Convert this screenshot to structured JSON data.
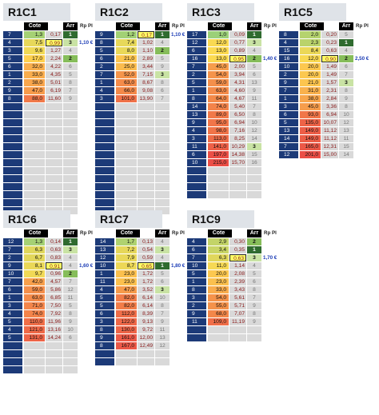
{
  "headers": {
    "cote": "Cote",
    "arr": "Arr",
    "rp": "Rp Pl"
  },
  "colors": {
    "number_cell": "#1c3a78",
    "rank1": "#2f6b2f",
    "rank2": "#86bd5a",
    "rank3": "#c9e3a4",
    "highlight": "#ffff66",
    "rp_text": "#1a3bb5"
  },
  "races": [
    {
      "title": "R1C1",
      "rp": "1,10 €",
      "rp_row": 1,
      "hl_row": 1,
      "rows": [
        [
          "7",
          "1,3",
          "0,17",
          "1"
        ],
        [
          "4",
          "7,5",
          "0,99",
          "3"
        ],
        [
          "3",
          "9,6",
          "1,27",
          "4"
        ],
        [
          "5",
          "17,0",
          "2,24",
          "2"
        ],
        [
          "6",
          "32,0",
          "4,22",
          "6"
        ],
        [
          "1",
          "33,0",
          "4,35",
          "5"
        ],
        [
          "2",
          "38,0",
          "5,01",
          "8"
        ],
        [
          "9",
          "47,0",
          "6,19",
          "7"
        ],
        [
          "8",
          "88,0",
          "11,60",
          "9"
        ]
      ],
      "blank": 14
    },
    {
      "title": "R1C2",
      "rp": "1,10 €",
      "rp_row": 0,
      "hl_row": 0,
      "rows": [
        [
          "9",
          "1,2",
          "0,17",
          "1"
        ],
        [
          "8",
          "7,4",
          "1,02",
          "4"
        ],
        [
          "5",
          "8,0",
          "1,10",
          "2"
        ],
        [
          "6",
          "21,0",
          "2,89",
          "5"
        ],
        [
          "2",
          "25,0",
          "3,44",
          "9"
        ],
        [
          "7",
          "52,0",
          "7,15",
          "3"
        ],
        [
          "1",
          "63,0",
          "8,67",
          "8"
        ],
        [
          "4",
          "66,0",
          "9,08",
          "6"
        ],
        [
          "3",
          "101,0",
          "13,90",
          "7"
        ]
      ],
      "blank": 14
    },
    {
      "title": "R1C3",
      "rp": "1,40 €",
      "rp_row": 3,
      "hl_row": 3,
      "rows": [
        [
          "17",
          "1,0",
          "0,09",
          "1"
        ],
        [
          "12",
          "12,0",
          "0,77",
          "3"
        ],
        [
          "6",
          "13,0",
          "0,89",
          "4"
        ],
        [
          "16",
          "13,0",
          "0,95",
          "2"
        ],
        [
          "7",
          "45,0",
          "2,00",
          "5"
        ],
        [
          "2",
          "54,0",
          "3,94",
          "6"
        ],
        [
          "5",
          "59,0",
          "4,31",
          "13"
        ],
        [
          "1",
          "63,0",
          "4,60",
          "9"
        ],
        [
          "8",
          "64,0",
          "4,67",
          "11"
        ],
        [
          "14",
          "74,0",
          "5,40",
          "7"
        ],
        [
          "13",
          "89,0",
          "6,50",
          "8"
        ],
        [
          "9",
          "95,0",
          "6,94",
          "10"
        ],
        [
          "4",
          "98,0",
          "7,16",
          "12"
        ],
        [
          "3",
          "113,0",
          "8,25",
          "14"
        ],
        [
          "11",
          "141,0",
          "10,29",
          "3"
        ],
        [
          "6",
          "197,0",
          "14,38",
          "15"
        ],
        [
          "10",
          "215,0",
          "15,70",
          "16"
        ]
      ],
      "blank": 4
    },
    {
      "title": "R1C5",
      "rp": "2,50 €",
      "rp_row": 3,
      "hl_row": 3,
      "rows": [
        [
          "8",
          "2,0",
          "0,20",
          "5"
        ],
        [
          "4",
          "2,3",
          "0,23",
          "1"
        ],
        [
          "15",
          "8,4",
          "0,63",
          "4"
        ],
        [
          "16",
          "12,0",
          "0,90",
          "2"
        ],
        [
          "10",
          "20,0",
          "1,49",
          "6"
        ],
        [
          "2",
          "20,0",
          "1,49",
          "7"
        ],
        [
          "9",
          "21,0",
          "1,57",
          "3"
        ],
        [
          "7",
          "31,0",
          "2,31",
          "8"
        ],
        [
          "1",
          "38,0",
          "2,84",
          "9"
        ],
        [
          "3",
          "45,0",
          "3,36",
          "8"
        ],
        [
          "6",
          "93,0",
          "6,94",
          "10"
        ],
        [
          "5",
          "135,0",
          "10,07",
          "12"
        ],
        [
          "13",
          "149,0",
          "11,12",
          "13"
        ],
        [
          "14",
          "149,0",
          "11,12",
          "11"
        ],
        [
          "7",
          "165,0",
          "12,31",
          "15"
        ],
        [
          "12",
          "201,0",
          "15,00",
          "14"
        ]
      ],
      "blank": 0
    },
    {
      "title": "R1C6",
      "rp": "1,60 €",
      "rp_row": 3,
      "hl_row": 3,
      "rows": [
        [
          "12",
          "1,3",
          "0,14",
          "1"
        ],
        [
          "7",
          "6,3",
          "0,63",
          "3"
        ],
        [
          "2",
          "6,7",
          "0,83",
          "4"
        ],
        [
          "9",
          "8,1",
          "0,91",
          "4"
        ],
        [
          "10",
          "9,7",
          "0,96",
          "2"
        ],
        [
          "7",
          "42,0",
          "4,57",
          "7"
        ],
        [
          "6",
          "59,0",
          "5,86",
          "12"
        ],
        [
          "1",
          "63,0",
          "6,85",
          "11"
        ],
        [
          "3",
          "71,0",
          "7,50",
          "5"
        ],
        [
          "4",
          "74,0",
          "7,92",
          "8"
        ],
        [
          "5",
          "110,0",
          "11,96",
          "9"
        ],
        [
          "4",
          "121,0",
          "13,16",
          "10"
        ],
        [
          "5",
          "131,0",
          "14,24",
          "6"
        ]
      ],
      "blank": 4
    },
    {
      "title": "R1C7",
      "rp": "1,80 €",
      "rp_row": 3,
      "hl_row": 3,
      "rows": [
        [
          "14",
          "1,7",
          "0,13",
          "4"
        ],
        [
          "13",
          "7,2",
          "0,54",
          "3"
        ],
        [
          "12",
          "7,9",
          "0,59",
          "4"
        ],
        [
          "10",
          "8,7",
          "0,65",
          "1"
        ],
        [
          "1",
          "23,0",
          "1,72",
          "5"
        ],
        [
          "11",
          "23,0",
          "1,72",
          "6"
        ],
        [
          "4",
          "47,0",
          "3,52",
          "3"
        ],
        [
          "5",
          "82,0",
          "6,14",
          "10"
        ],
        [
          "5",
          "82,0",
          "6,14",
          "8"
        ],
        [
          "6",
          "112,0",
          "8,39",
          "7"
        ],
        [
          "3",
          "122,0",
          "9,13",
          "9"
        ],
        [
          "8",
          "130,0",
          "9,72",
          "11"
        ],
        [
          "9",
          "161,0",
          "12,00",
          "13"
        ],
        [
          "8",
          "167,0",
          "12,49",
          "12"
        ]
      ],
      "blank": 2
    },
    {
      "title": "R1C9",
      "rp": "1,70 €",
      "rp_row": 2,
      "hl_row": 2,
      "rows": [
        [
          "4",
          "2,9",
          "0,30",
          "2"
        ],
        [
          "6",
          "3,4",
          "0,35",
          "1"
        ],
        [
          "7",
          "6,3",
          "0,63",
          "3"
        ],
        [
          "10",
          "11,0",
          "1,14",
          "4"
        ],
        [
          "5",
          "20,0",
          "2,08",
          "5"
        ],
        [
          "1",
          "23,0",
          "2,39",
          "6"
        ],
        [
          "8",
          "33,0",
          "3,43",
          "8"
        ],
        [
          "3",
          "54,0",
          "5,61",
          "7"
        ],
        [
          "2",
          "55,0",
          "5,71",
          "9"
        ],
        [
          "9",
          "68,0",
          "7,07",
          "8"
        ],
        [
          "11",
          "109,0",
          "11,19",
          "9"
        ]
      ],
      "blank": 2
    }
  ]
}
